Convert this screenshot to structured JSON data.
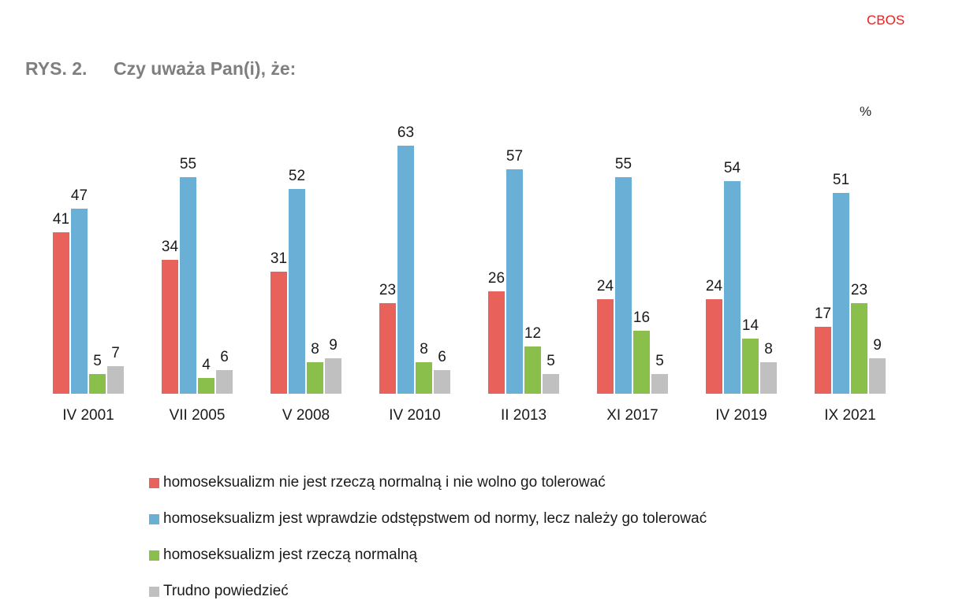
{
  "brand": "CBOS",
  "figure_number": "RYS. 2.",
  "title": "Czy uważa Pan(i), że:",
  "unit_label": "%",
  "chart_data": {
    "type": "bar",
    "categories": [
      "IV 2001",
      "VII 2005",
      "V 2008",
      "IV 2010",
      "II 2013",
      "XI 2017",
      "IV 2019",
      "IX 2021"
    ],
    "series": [
      {
        "name": "homoseksualizm nie jest rzeczą normalną i nie wolno go tolerować",
        "color": "#e8615a",
        "values": [
          41,
          34,
          31,
          23,
          26,
          24,
          24,
          17
        ]
      },
      {
        "name": "homoseksualizm jest wprawdzie odstępstwem od normy, lecz należy go tolerować",
        "color": "#6aafd5",
        "values": [
          47,
          55,
          52,
          63,
          57,
          55,
          54,
          51
        ]
      },
      {
        "name": "homoseksualizm jest rzeczą normalną",
        "color": "#8bbf4b",
        "values": [
          5,
          4,
          8,
          8,
          12,
          16,
          14,
          23
        ]
      },
      {
        "name": "Trudno powiedzieć",
        "color": "#c0c0c0",
        "values": [
          7,
          6,
          9,
          6,
          5,
          5,
          8,
          9
        ]
      }
    ],
    "ylim": [
      0,
      70
    ],
    "grid": false,
    "data_labels": true,
    "legend_position": "bottom"
  }
}
